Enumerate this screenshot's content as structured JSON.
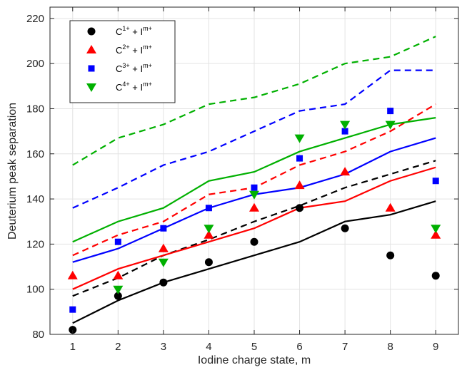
{
  "chart_data": {
    "type": "scatter",
    "xlabel": "Iodine charge state, m",
    "ylabel": "Deuterium peak separation",
    "xlim": [
      0.5,
      9.5
    ],
    "ylim": [
      80,
      225
    ],
    "xticks": [
      1,
      2,
      3,
      4,
      5,
      6,
      7,
      8,
      9
    ],
    "yticks": [
      80,
      100,
      120,
      140,
      160,
      180,
      200,
      220
    ],
    "grid": true,
    "legend_placement": "top-left",
    "x": [
      1,
      2,
      3,
      4,
      5,
      6,
      7,
      8,
      9
    ],
    "series": [
      {
        "name": "C1+ + Im+",
        "name_parts": {
          "base1": "C",
          "sup1": "1+",
          "mid": " + I",
          "sup2": "m+"
        },
        "color": "#000000",
        "marker": "circle",
        "points": [
          82,
          97,
          103,
          112,
          121,
          136,
          127,
          115,
          106
        ],
        "solid_line": [
          85,
          95,
          103,
          109,
          115,
          121,
          130,
          133,
          139
        ],
        "dashed_line": [
          97,
          105,
          115,
          122,
          130,
          137,
          145,
          151,
          157
        ]
      },
      {
        "name": "C2+ + Im+",
        "name_parts": {
          "base1": "C",
          "sup1": "2+",
          "mid": " + I",
          "sup2": "m+"
        },
        "color": "#ff0000",
        "marker": "triangle-up",
        "points": [
          106,
          106,
          118,
          124,
          136,
          146,
          152,
          136,
          124
        ],
        "solid_line": [
          100,
          109,
          115,
          121,
          127,
          136,
          139,
          148,
          154
        ],
        "dashed_line": [
          115,
          124,
          130,
          142,
          145,
          155,
          161,
          170,
          182
        ]
      },
      {
        "name": "C3+ + Im+",
        "name_parts": {
          "base1": "C",
          "sup1": "3+",
          "mid": " + I",
          "sup2": "m+"
        },
        "color": "#0000ff",
        "marker": "square",
        "points": [
          91,
          121,
          127,
          136,
          145,
          158,
          170,
          179,
          148
        ],
        "solid_line": [
          112,
          118,
          127,
          136,
          142,
          145,
          151,
          161,
          167
        ],
        "dashed_line": [
          136,
          145,
          155,
          161,
          170,
          179,
          182,
          197,
          197
        ]
      },
      {
        "name": "C4+ + Im+",
        "name_parts": {
          "base1": "C",
          "sup1": "4+",
          "mid": " + I",
          "sup2": "m+"
        },
        "color": "#00b000",
        "marker": "triangle-down",
        "points": [
          null,
          100,
          112,
          127,
          142,
          167,
          173,
          173,
          127
        ],
        "solid_line": [
          121,
          130,
          136,
          148,
          152,
          161,
          167,
          173,
          176
        ],
        "dashed_line": [
          155,
          167,
          173,
          182,
          185,
          191,
          200,
          203,
          212
        ]
      }
    ]
  }
}
